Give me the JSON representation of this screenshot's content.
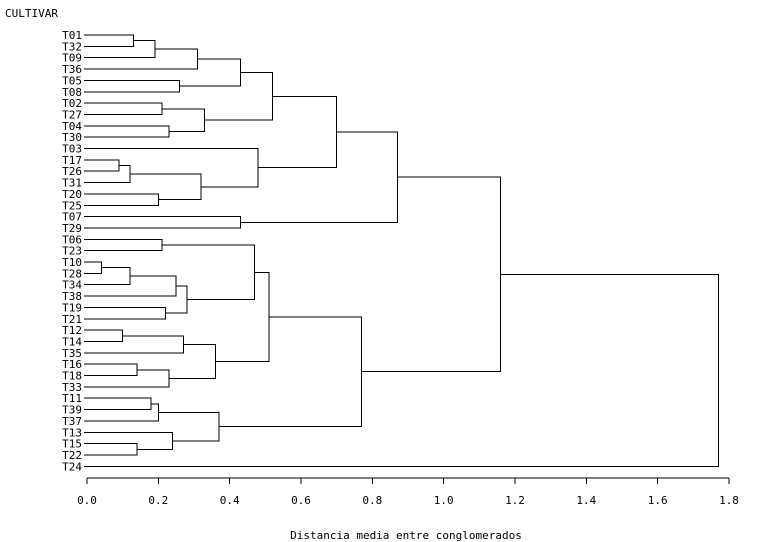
{
  "chart_data": {
    "type": "dendrogram",
    "title": "CULTIVAR",
    "xlabel": "Distancia media entre conglomerados",
    "ylabel": "",
    "xlim": [
      0.0,
      1.8
    ],
    "x_ticks": [
      0.0,
      0.2,
      0.4,
      0.6,
      0.8,
      1.0,
      1.2,
      1.4,
      1.6,
      1.8
    ],
    "x_tick_labels": [
      "0.0",
      "0.2",
      "0.4",
      "0.6",
      "0.8",
      "1.0",
      "1.2",
      "1.4",
      "1.6",
      "1.8"
    ],
    "leaves": [
      "T01",
      "T32",
      "T09",
      "T36",
      "T05",
      "T08",
      "T02",
      "T27",
      "T04",
      "T30",
      "T03",
      "T17",
      "T26",
      "T31",
      "T20",
      "T25",
      "T07",
      "T29",
      "T06",
      "T23",
      "T10",
      "T28",
      "T34",
      "T38",
      "T19",
      "T21",
      "T12",
      "T14",
      "T35",
      "T16",
      "T18",
      "T33",
      "T11",
      "T39",
      "T37",
      "T13",
      "T15",
      "T22",
      "T24"
    ],
    "merges": [
      {
        "id": "A1",
        "left": "T01",
        "right": "T32",
        "height": 0.13
      },
      {
        "id": "A2",
        "left": "A1",
        "right": "T09",
        "height": 0.19
      },
      {
        "id": "A3",
        "left": "A2",
        "right": "T36",
        "height": 0.31
      },
      {
        "id": "A4",
        "left": "T05",
        "right": "T08",
        "height": 0.26
      },
      {
        "id": "A5",
        "left": "A3",
        "right": "A4",
        "height": 0.43
      },
      {
        "id": "A6",
        "left": "T02",
        "right": "T27",
        "height": 0.21
      },
      {
        "id": "A7",
        "left": "T04",
        "right": "T30",
        "height": 0.23
      },
      {
        "id": "A8",
        "left": "A6",
        "right": "A7",
        "height": 0.33
      },
      {
        "id": "A9",
        "left": "A5",
        "right": "A8",
        "height": 0.52
      },
      {
        "id": "B1",
        "left": "T17",
        "right": "T26",
        "height": 0.09
      },
      {
        "id": "B2",
        "left": "B1",
        "right": "T31",
        "height": 0.12
      },
      {
        "id": "B3",
        "left": "T20",
        "right": "T25",
        "height": 0.2
      },
      {
        "id": "B4",
        "left": "B2",
        "right": "B3",
        "height": 0.32
      },
      {
        "id": "B5",
        "left": "T03",
        "right": "B4",
        "height": 0.48
      },
      {
        "id": "B6",
        "left": "A9",
        "right": "B5",
        "height": 0.7
      },
      {
        "id": "B7",
        "left": "T07",
        "right": "T29",
        "height": 0.43
      },
      {
        "id": "B8",
        "left": "B6",
        "right": "B7",
        "height": 0.87
      },
      {
        "id": "C1",
        "left": "T10",
        "right": "T28",
        "height": 0.04
      },
      {
        "id": "C2",
        "left": "C1",
        "right": "T34",
        "height": 0.12
      },
      {
        "id": "C3",
        "left": "T06",
        "right": "T23",
        "height": 0.21
      },
      {
        "id": "C4",
        "left": "C2",
        "right": "T38",
        "height": 0.25
      },
      {
        "id": "C5",
        "left": "T19",
        "right": "T21",
        "height": 0.22
      },
      {
        "id": "C6",
        "left": "C4",
        "right": "C5",
        "height": 0.28
      },
      {
        "id": "C7",
        "left": "C3",
        "right": "C6",
        "height": 0.47
      },
      {
        "id": "C8",
        "left": "T12",
        "right": "T14",
        "height": 0.1
      },
      {
        "id": "C9",
        "left": "C8",
        "right": "T35",
        "height": 0.27
      },
      {
        "id": "C10",
        "left": "T16",
        "right": "T18",
        "height": 0.14
      },
      {
        "id": "C11",
        "left": "C10",
        "right": "T33",
        "height": 0.23
      },
      {
        "id": "C12",
        "left": "C9",
        "right": "C11",
        "height": 0.36
      },
      {
        "id": "C13",
        "left": "C7",
        "right": "C12",
        "height": 0.51
      },
      {
        "id": "D1",
        "left": "T11",
        "right": "T39",
        "height": 0.18
      },
      {
        "id": "D2",
        "left": "D1",
        "right": "T37",
        "height": 0.2
      },
      {
        "id": "D3",
        "left": "T15",
        "right": "T22",
        "height": 0.14
      },
      {
        "id": "D4",
        "left": "T13",
        "right": "D3",
        "height": 0.24
      },
      {
        "id": "D5",
        "left": "D2",
        "right": "D4",
        "height": 0.37
      },
      {
        "id": "D6",
        "left": "C13",
        "right": "D5",
        "height": 0.77
      },
      {
        "id": "E1",
        "left": "B8",
        "right": "D6",
        "height": 1.16
      },
      {
        "id": "E2",
        "left": "E1",
        "right": "T24",
        "height": 1.77
      }
    ]
  }
}
